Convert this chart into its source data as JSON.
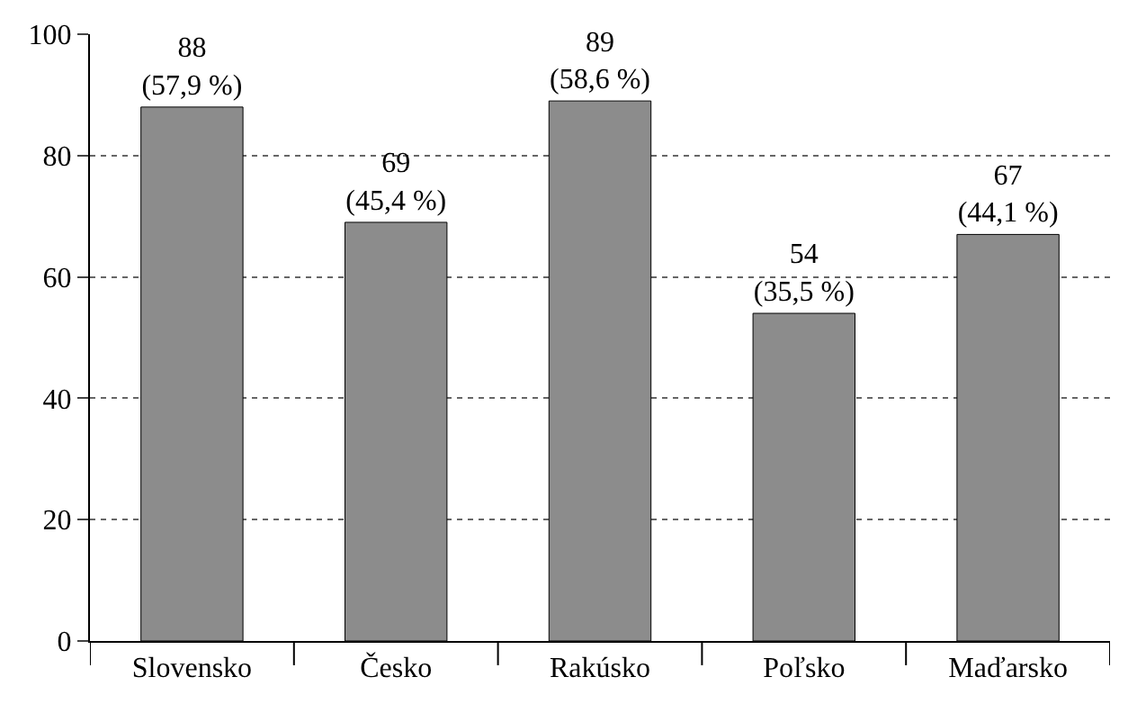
{
  "chart_data": {
    "type": "bar",
    "categories": [
      "Slovensko",
      "Česko",
      "Rakúsko",
      "Poľsko",
      "Maďarsko"
    ],
    "values": [
      88,
      69,
      89,
      54,
      67
    ],
    "value_labels": [
      "88\n(57,9 %)",
      "69\n(45,4 %)",
      "89\n(58,6 %)",
      "54\n(35,5 %)",
      "67\n(44,1 %)"
    ],
    "color": "#8c8c8c",
    "ylim": [
      0,
      100
    ],
    "yticks": [
      0,
      20,
      40,
      60,
      80,
      100
    ],
    "grid": "y",
    "line_style": "dotted"
  }
}
